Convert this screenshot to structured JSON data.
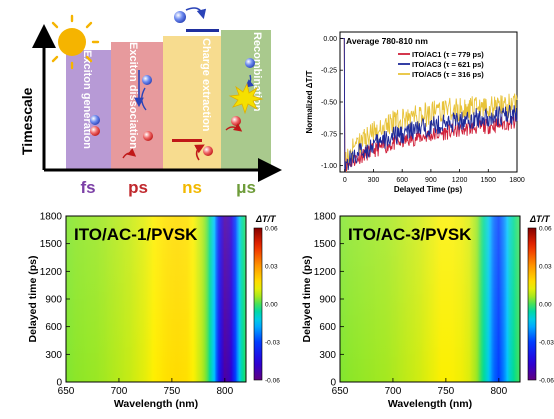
{
  "colors": {
    "band_fs": "#b79ad6",
    "band_ps": "#e79a9d",
    "band_ns": "#f7dc8f",
    "band_us": "#a9c98d",
    "label_fs": "#7b3fa6",
    "label_ps": "#c0282d",
    "label_ns": "#f2b800",
    "label_us": "#6e9c3a",
    "electron": "#3b5bd9",
    "hole": "#e03030",
    "series1": "#d0213b",
    "series2": "#1e2a9a",
    "series3": "#e8c33a"
  },
  "schematic": {
    "stages": [
      "Exciton generation",
      "Exciton dissociation",
      "Charge extraction",
      "Recombination"
    ],
    "axis_label": "Timescale",
    "timescales": [
      "fs",
      "ps",
      "ns",
      "μs"
    ],
    "icons": [
      "sun-icon",
      "burst-icon",
      "electron-icon",
      "hole-icon"
    ]
  },
  "chart_data": [
    {
      "type": "line",
      "title": "Average 780-810 nm",
      "xlabel": "Delayed Time (ps)",
      "ylabel": "Normalized ΔT/T",
      "xlim": [
        -50,
        1800
      ],
      "ylim": [
        -1.05,
        0.05
      ],
      "xticks": [
        0,
        300,
        600,
        900,
        1200,
        1500,
        1800
      ],
      "yticks": [
        0.0,
        -0.25,
        -0.5,
        -0.75,
        -1.0
      ],
      "yticklabels": [
        "0.00",
        "-0.25",
        "-0.50",
        "-0.75",
        "-1.00"
      ],
      "legend_position": "top-right",
      "series": [
        {
          "name": "ITO/AC1 (τ = 779 ps)",
          "x": [
            0,
            20,
            60,
            150,
            300,
            450,
            600,
            750,
            900,
            1050,
            1200,
            1350,
            1500,
            1650,
            1800
          ],
          "values": [
            -1.0,
            -0.99,
            -0.97,
            -0.93,
            -0.88,
            -0.84,
            -0.81,
            -0.78,
            -0.76,
            -0.74,
            -0.72,
            -0.7,
            -0.69,
            -0.67,
            -0.66
          ]
        },
        {
          "name": "ITO/AC3 (τ = 621 ps)",
          "x": [
            0,
            20,
            60,
            150,
            300,
            450,
            600,
            750,
            900,
            1050,
            1200,
            1350,
            1500,
            1650,
            1800
          ],
          "values": [
            -1.0,
            -0.98,
            -0.95,
            -0.9,
            -0.84,
            -0.79,
            -0.75,
            -0.72,
            -0.69,
            -0.67,
            -0.65,
            -0.63,
            -0.62,
            -0.61,
            -0.6
          ]
        },
        {
          "name": "ITO/AC5 (τ = 316 ps)",
          "x": [
            0,
            20,
            60,
            150,
            300,
            450,
            600,
            750,
            900,
            1050,
            1200,
            1350,
            1500,
            1650,
            1800
          ],
          "values": [
            -1.0,
            -0.96,
            -0.9,
            -0.82,
            -0.74,
            -0.68,
            -0.64,
            -0.61,
            -0.59,
            -0.57,
            -0.56,
            -0.55,
            -0.54,
            -0.53,
            -0.53
          ]
        }
      ]
    },
    {
      "type": "heatmap",
      "title": "ITO/AC-1/PVSK",
      "xlabel": "Wavelength (nm)",
      "ylabel": "Delayed time (ps)",
      "xlim": [
        650,
        820
      ],
      "ylim": [
        0,
        1800
      ],
      "xticks": [
        650,
        700,
        750,
        800
      ],
      "yticks": [
        0,
        300,
        600,
        900,
        1200,
        1500,
        1800
      ],
      "colorbar_title": "ΔT/T",
      "colorbar_ticks": [
        "0.06",
        "0.03",
        "0.00",
        "-0.03",
        "-0.06"
      ],
      "colorbar_range": [
        -0.06,
        0.06
      ],
      "profile": {
        "wavelengths": [
          650,
          665,
          680,
          695,
          710,
          725,
          735,
          745,
          755,
          765,
          772,
          778,
          784,
          790,
          795,
          800,
          805,
          810,
          815,
          820
        ],
        "values": [
          0.003,
          0.004,
          0.005,
          0.007,
          0.009,
          0.012,
          0.015,
          0.017,
          0.018,
          0.017,
          0.013,
          0.008,
          0.0,
          -0.015,
          -0.04,
          -0.055,
          -0.05,
          -0.03,
          -0.008,
          0.0
        ]
      },
      "decay_tau_ps": 780
    },
    {
      "type": "heatmap",
      "title": "ITO/AC-3/PVSK",
      "xlabel": "Wavelength (nm)",
      "ylabel": "Delayed time (ps)",
      "xlim": [
        650,
        820
      ],
      "ylim": [
        0,
        1800
      ],
      "xticks": [
        650,
        700,
        750,
        800
      ],
      "yticks": [
        0,
        300,
        600,
        900,
        1200,
        1500,
        1800
      ],
      "colorbar_title": "ΔT/T",
      "colorbar_ticks": [
        "0.06",
        "0.03",
        "0.00",
        "-0.03",
        "-0.06"
      ],
      "colorbar_range": [
        -0.06,
        0.06
      ],
      "profile": {
        "wavelengths": [
          650,
          665,
          680,
          695,
          710,
          725,
          735,
          745,
          755,
          765,
          772,
          778,
          784,
          790,
          795,
          800,
          805,
          810,
          815,
          820
        ],
        "values": [
          0.003,
          0.004,
          0.005,
          0.006,
          0.008,
          0.01,
          0.012,
          0.014,
          0.014,
          0.013,
          0.011,
          0.006,
          -0.002,
          -0.012,
          -0.025,
          -0.03,
          -0.022,
          -0.01,
          -0.003,
          0.0
        ]
      },
      "decay_tau_ps": 620
    }
  ]
}
